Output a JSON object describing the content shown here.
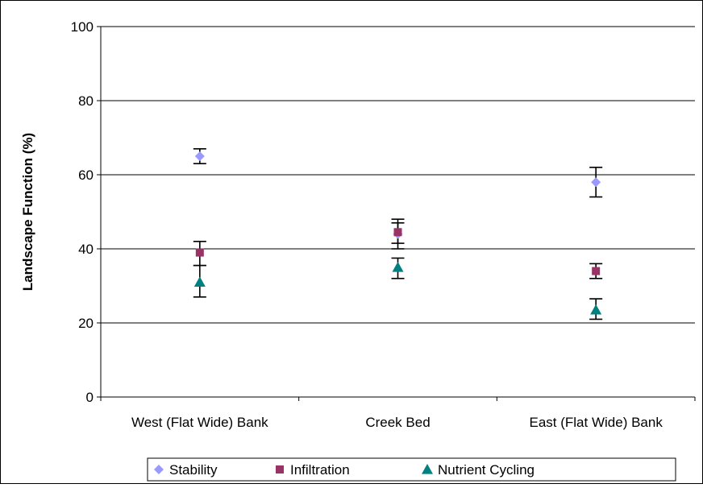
{
  "chart_data": {
    "type": "scatter",
    "title": "",
    "xlabel": "",
    "ylabel": "Landscape Function (%)",
    "ylim": [
      0,
      100
    ],
    "yticks": [
      0,
      20,
      40,
      60,
      80,
      100
    ],
    "grid": "horizontal",
    "legend_position": "bottom",
    "categories": [
      "West (Flat Wide) Bank",
      "Creek Bed",
      "East (Flat Wide) Bank"
    ],
    "series": [
      {
        "name": "Stability",
        "marker": "diamond",
        "color": "#9999ff",
        "values": [
          65,
          44,
          58
        ],
        "error_low": [
          63,
          40,
          54
        ],
        "error_high": [
          67,
          48,
          62
        ]
      },
      {
        "name": "Infiltration",
        "marker": "square",
        "color": "#993366",
        "values": [
          39,
          44.5,
          34
        ],
        "error_low": [
          35.5,
          41.5,
          32
        ],
        "error_high": [
          42,
          47,
          36
        ]
      },
      {
        "name": "Nutrient Cycling",
        "marker": "triangle",
        "color": "#008080",
        "values": [
          31,
          35,
          23.5
        ],
        "error_low": [
          27,
          32,
          21
        ],
        "error_high": [
          35.5,
          37.5,
          26.5
        ]
      }
    ]
  }
}
